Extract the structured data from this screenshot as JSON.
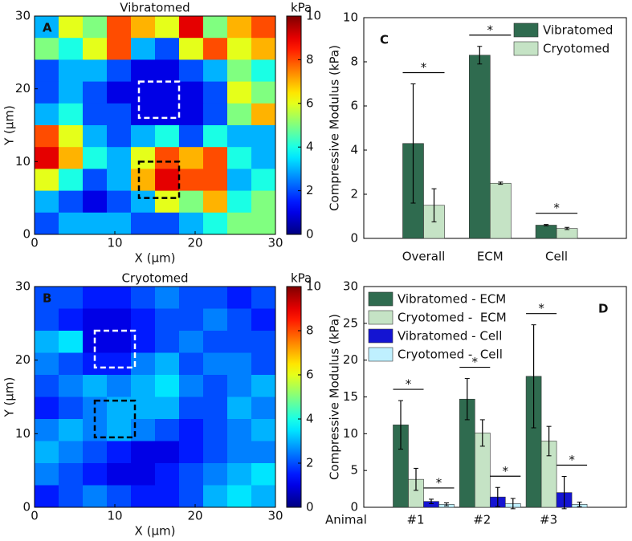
{
  "chart_data": [
    {
      "type": "heatmap",
      "title": "Vibratomed",
      "panel": "A",
      "x_label": "X (µm)",
      "y_label": "Y (µm)",
      "colorbar_label": "kPa",
      "colormap": "jet",
      "xlim": [
        0,
        30
      ],
      "ylim": [
        0,
        30
      ],
      "xticks": [
        0,
        10,
        20,
        30
      ],
      "yticks": [
        0,
        10,
        20,
        30
      ],
      "clim": [
        0,
        10
      ],
      "cticks": [
        0,
        2,
        4,
        6,
        8,
        10
      ],
      "x": [
        1.5,
        4.5,
        7.5,
        10.5,
        13.5,
        16.5,
        19.5,
        22.5,
        25.5,
        28.5
      ],
      "y": [
        28.5,
        25.5,
        22.5,
        19.5,
        16.5,
        13.5,
        10.5,
        7.5,
        4.5,
        1.5
      ],
      "values": [
        [
          3,
          6,
          5,
          8,
          7,
          6,
          9,
          5,
          7,
          8
        ],
        [
          5,
          4,
          6,
          8,
          3,
          2,
          6,
          8,
          6,
          7
        ],
        [
          2,
          3,
          3,
          2,
          1,
          1,
          2,
          3,
          5,
          4
        ],
        [
          2,
          3,
          2,
          1,
          1,
          1,
          1,
          2,
          6,
          5
        ],
        [
          3,
          4,
          2,
          2,
          1,
          1,
          1,
          2,
          5,
          7
        ],
        [
          8,
          6,
          3,
          2,
          3,
          4,
          2,
          4,
          3,
          3
        ],
        [
          9,
          7,
          4,
          3,
          6,
          8,
          7,
          8,
          4,
          3
        ],
        [
          6,
          4,
          2,
          3,
          7,
          9,
          8,
          8,
          3,
          4
        ],
        [
          3,
          2,
          1,
          2,
          3,
          6,
          5,
          7,
          4,
          5
        ],
        [
          2,
          3,
          3,
          3,
          2,
          2,
          3,
          4,
          5,
          5
        ]
      ],
      "boxes": [
        {
          "color": "#ffffff",
          "x": [
            13,
            18
          ],
          "y": [
            16,
            21
          ]
        },
        {
          "color": "#000000",
          "x": [
            13,
            18
          ],
          "y": [
            5,
            10
          ]
        }
      ]
    },
    {
      "type": "heatmap",
      "title": "Cryotomed",
      "panel": "B",
      "x_label": "X (µm)",
      "y_label": "Y (µm)",
      "colorbar_label": "kPa",
      "colormap": "jet",
      "xlim": [
        0,
        30
      ],
      "ylim": [
        0,
        30
      ],
      "xticks": [
        0,
        10,
        20,
        30
      ],
      "yticks": [
        0,
        10,
        20,
        30
      ],
      "clim": [
        0,
        10
      ],
      "cticks": [
        0,
        2,
        4,
        6,
        8,
        10
      ],
      "x": [
        1.5,
        4.5,
        7.5,
        10.5,
        13.5,
        16.5,
        19.5,
        22.5,
        25.5,
        28.5
      ],
      "y": [
        28.5,
        25.5,
        22.5,
        19.5,
        16.5,
        13.5,
        10.5,
        7.5,
        4.5,
        1.5
      ],
      "values": [
        [
          2,
          2,
          1.5,
          1.5,
          2,
          2.5,
          2,
          2,
          1.5,
          2
        ],
        [
          2,
          1.5,
          1,
          1,
          1.5,
          2,
          2,
          2.5,
          2,
          1.5
        ],
        [
          3,
          3.5,
          1,
          1,
          1.5,
          2,
          2.5,
          2,
          2,
          2
        ],
        [
          2.5,
          2,
          1.5,
          1.5,
          2.5,
          3,
          2,
          2.5,
          2.5,
          2
        ],
        [
          2,
          2.5,
          3,
          2.5,
          3,
          3.5,
          2.5,
          2,
          2.5,
          3
        ],
        [
          1.5,
          2,
          2.5,
          3,
          3,
          3,
          2,
          2,
          3,
          2.5
        ],
        [
          2.5,
          3,
          2.5,
          3,
          2.5,
          2,
          1.5,
          2,
          2.5,
          3
        ],
        [
          3,
          2.5,
          2,
          1.5,
          1,
          1,
          1.5,
          2,
          2.5,
          2.5
        ],
        [
          2.5,
          2,
          1.5,
          1,
          1,
          1.5,
          2,
          2.5,
          3,
          3.5
        ],
        [
          1.5,
          2,
          2.5,
          2,
          1.5,
          1.5,
          2,
          3,
          3.5,
          3
        ]
      ],
      "boxes": [
        {
          "color": "#ffffff",
          "x": [
            7.5,
            12.5
          ],
          "y": [
            19,
            24
          ]
        },
        {
          "color": "#000000",
          "x": [
            7.5,
            12.5
          ],
          "y": [
            9.5,
            14.5
          ]
        }
      ]
    },
    {
      "type": "bar",
      "panel": "C",
      "y_label": "Compressive Modulus (kPa)",
      "legend": "upper right",
      "categories": [
        "Overall",
        "ECM",
        "Cell"
      ],
      "ylim": [
        0,
        10
      ],
      "yticks": [
        0,
        2,
        4,
        6,
        8,
        10
      ],
      "series": [
        {
          "name": "Vibratomed",
          "color": "#2f6b4f",
          "values": [
            4.3,
            8.3,
            0.6
          ],
          "errors": [
            2.7,
            0.4,
            0.03
          ]
        },
        {
          "name": "Cryotomed",
          "color": "#c5e3c5",
          "values": [
            1.5,
            2.5,
            0.45
          ],
          "errors": [
            0.75,
            0.05,
            0.05
          ]
        }
      ],
      "significance": [
        [
          "*"
        ],
        [
          "*"
        ],
        [
          "*"
        ]
      ]
    },
    {
      "type": "bar",
      "panel": "D",
      "y_label": "Compressive Modulus (kPa)",
      "x_label": "Animal",
      "legend": "upper left",
      "categories": [
        "#1",
        "#2",
        "#3"
      ],
      "ylim": [
        0,
        30
      ],
      "yticks": [
        0,
        5,
        10,
        15,
        20,
        25,
        30
      ],
      "series": [
        {
          "name": "Vibratomed - ECM",
          "color": "#2f6b4f",
          "values": [
            11.2,
            14.7,
            17.8
          ],
          "errors": [
            3.3,
            2.8,
            7.0
          ]
        },
        {
          "name": "Cryotomed -  ECM",
          "color": "#c5e3c5",
          "values": [
            3.8,
            10.1,
            9.0
          ],
          "errors": [
            1.5,
            1.8,
            2.0
          ]
        },
        {
          "name": "Vibratomed - Cell",
          "color": "#1414d2",
          "values": [
            0.8,
            1.4,
            2.0
          ],
          "errors": [
            0.3,
            1.3,
            2.2
          ]
        },
        {
          "name": "Cryotomed -  Cell",
          "color": "#bff0ff",
          "values": [
            0.4,
            0.5,
            0.4
          ],
          "errors": [
            0.2,
            0.7,
            0.3
          ]
        }
      ],
      "significance": [
        [
          "*",
          "*"
        ],
        [
          "*",
          "*"
        ],
        [
          "*",
          "*"
        ]
      ]
    }
  ]
}
